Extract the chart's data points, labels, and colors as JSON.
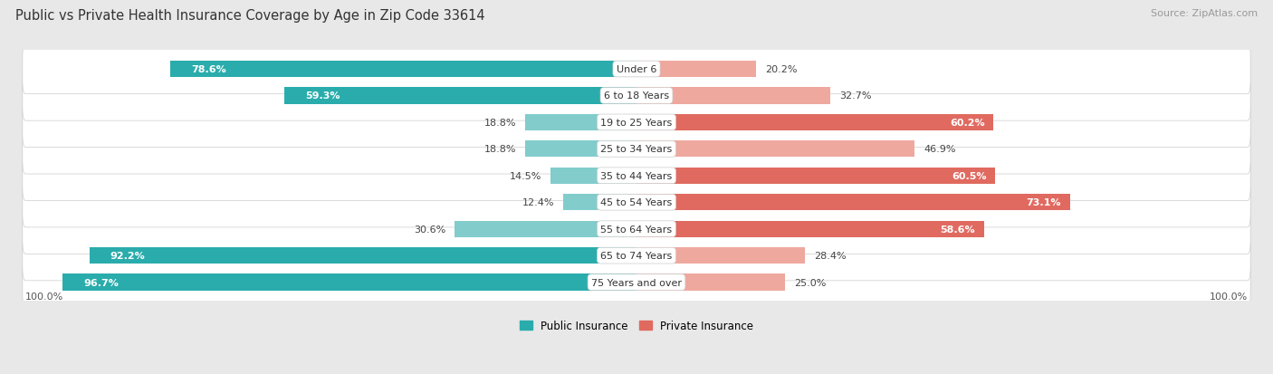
{
  "title": "Public vs Private Health Insurance Coverage by Age in Zip Code 33614",
  "source": "Source: ZipAtlas.com",
  "categories": [
    "Under 6",
    "6 to 18 Years",
    "19 to 25 Years",
    "25 to 34 Years",
    "35 to 44 Years",
    "45 to 54 Years",
    "55 to 64 Years",
    "65 to 74 Years",
    "75 Years and over"
  ],
  "public_values": [
    78.6,
    59.3,
    18.8,
    18.8,
    14.5,
    12.4,
    30.6,
    92.2,
    96.7
  ],
  "private_values": [
    20.2,
    32.7,
    60.2,
    46.9,
    60.5,
    73.1,
    58.6,
    28.4,
    25.0
  ],
  "public_color_dark": "#2AACAC",
  "public_color_light": "#82CCCC",
  "private_color_dark": "#E06A60",
  "private_color_light": "#EFA89E",
  "background_color": "#E8E8E8",
  "row_bg_color": "#F5F5F5",
  "axis_label_left": "100.0%",
  "axis_label_right": "100.0%",
  "legend_public": "Public Insurance",
  "legend_private": "Private Insurance",
  "title_fontsize": 10.5,
  "source_fontsize": 8,
  "label_fontsize": 8,
  "bar_height": 0.62,
  "xlim": 105,
  "pub_dark_threshold": 50,
  "priv_dark_threshold": 50
}
